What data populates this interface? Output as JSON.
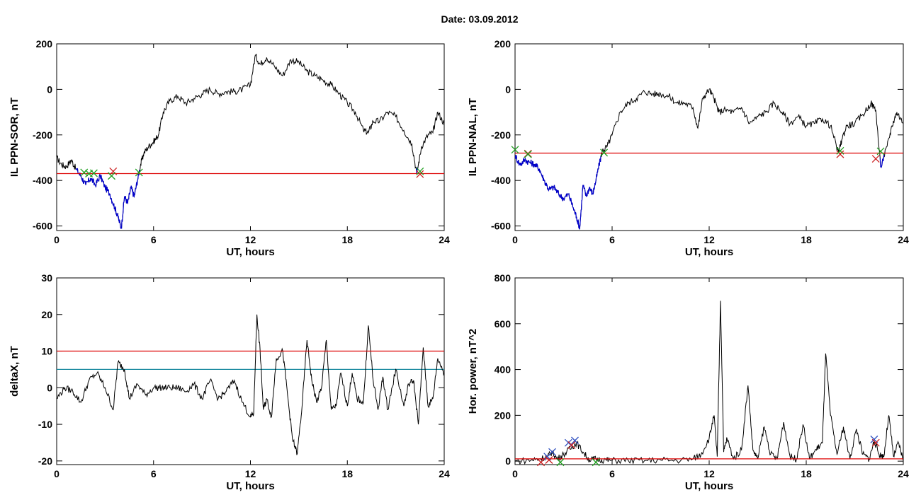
{
  "figure": {
    "title": "Date:  03.09.2012"
  },
  "colors": {
    "axis": "#000000",
    "trace": "#000000",
    "highlight": "#0000cc",
    "threshold_red": "#dd0000",
    "threshold_cyan": "#1a8aa0",
    "marker_green": "#20a020",
    "marker_red": "#cc2020",
    "marker_blue": "#3050c0"
  },
  "chart_data": [
    {
      "type": "line",
      "title": "",
      "xlabel": "UT, hours",
      "ylabel": "IL PPN-SOR, nT",
      "xlim": [
        0,
        24
      ],
      "ylim": [
        -620,
        200
      ],
      "xticks": [
        0,
        6,
        12,
        18,
        24
      ],
      "yticks": [
        -600,
        -400,
        -200,
        0,
        200
      ],
      "series": [
        {
          "values_x": [
            0,
            0.3,
            0.6,
            0.9,
            1.2,
            1.5,
            1.8,
            2.1,
            2.4,
            2.7,
            3.0,
            3.3,
            3.6,
            3.8,
            4.0,
            4.2,
            4.4,
            4.6,
            4.8,
            5.0,
            5.2,
            5.4,
            5.7,
            6.0,
            6.3,
            6.6,
            7.0,
            7.5,
            8,
            8.5,
            9,
            9.5,
            10,
            10.5,
            11,
            11.5,
            12,
            12.3,
            12.6,
            13,
            13.5,
            14,
            14.5,
            15,
            15.5,
            16,
            16.5,
            17,
            17.5,
            18,
            18.5,
            19,
            19.3,
            19.6,
            20,
            20.5,
            21,
            21.5,
            22,
            22.3,
            22.6,
            23,
            23.3,
            23.6,
            24
          ],
          "values_y": [
            -300,
            -330,
            -340,
            -310,
            -350,
            -380,
            -420,
            -390,
            -420,
            -380,
            -430,
            -460,
            -520,
            -560,
            -610,
            -470,
            -500,
            -430,
            -470,
            -400,
            -330,
            -280,
            -250,
            -230,
            -200,
            -100,
            -50,
            -30,
            -60,
            -40,
            -20,
            0,
            -20,
            -10,
            -10,
            0,
            20,
            150,
            110,
            140,
            100,
            60,
            130,
            120,
            80,
            60,
            40,
            20,
            -20,
            -60,
            -100,
            -180,
            -190,
            -140,
            -140,
            -100,
            -120,
            -180,
            -240,
            -370,
            -250,
            -200,
            -190,
            -100,
            -150
          ]
        }
      ],
      "threshold_red": -370,
      "highlight_threshold": -345,
      "markers": [
        {
          "x": 1.7,
          "y": -365,
          "color": "green"
        },
        {
          "x": 2.0,
          "y": -370,
          "color": "green"
        },
        {
          "x": 2.3,
          "y": -368,
          "color": "green"
        },
        {
          "x": 3.5,
          "y": -360,
          "color": "red"
        },
        {
          "x": 3.4,
          "y": -380,
          "color": "green"
        },
        {
          "x": 5.1,
          "y": -365,
          "color": "green"
        },
        {
          "x": 22.5,
          "y": -372,
          "color": "red"
        },
        {
          "x": 22.5,
          "y": -360,
          "color": "green"
        }
      ]
    },
    {
      "type": "line",
      "title": "",
      "xlabel": "UT, hours",
      "ylabel": "IL PPN-NAL, nT",
      "xlim": [
        0,
        24
      ],
      "ylim": [
        -620,
        200
      ],
      "xticks": [
        0,
        6,
        12,
        18,
        24
      ],
      "yticks": [
        -600,
        -400,
        -200,
        0,
        200
      ],
      "series": [
        {
          "values_x": [
            0,
            0.3,
            0.6,
            0.9,
            1.2,
            1.5,
            1.8,
            2.1,
            2.4,
            2.7,
            3.0,
            3.3,
            3.6,
            3.8,
            4.0,
            4.2,
            4.4,
            4.6,
            4.8,
            5.0,
            5.2,
            5.4,
            5.7,
            6.0,
            6.5,
            7,
            7.5,
            8,
            8.5,
            9,
            9.5,
            10,
            10.5,
            11,
            11.3,
            11.6,
            12,
            12.3,
            12.6,
            13,
            13.5,
            14,
            14.5,
            15,
            15.5,
            16,
            16.5,
            17,
            17.5,
            18,
            18.5,
            19,
            19.5,
            20,
            20.2,
            20.5,
            21,
            21.5,
            22,
            22.3,
            22.6,
            23,
            23.3,
            23.6,
            24
          ],
          "values_y": [
            -290,
            -330,
            -310,
            -320,
            -330,
            -350,
            -400,
            -440,
            -430,
            -460,
            -480,
            -460,
            -520,
            -560,
            -610,
            -420,
            -470,
            -430,
            -460,
            -400,
            -330,
            -270,
            -250,
            -200,
            -100,
            -60,
            -40,
            -10,
            -20,
            -20,
            -30,
            -60,
            -60,
            -80,
            -170,
            -40,
            0,
            -40,
            -100,
            -90,
            -100,
            -80,
            -150,
            -120,
            -100,
            -60,
            -100,
            -150,
            -120,
            -160,
            -150,
            -130,
            -160,
            -280,
            -220,
            -160,
            -150,
            -110,
            -60,
            -90,
            -340,
            -250,
            -160,
            -100,
            -150
          ]
        }
      ],
      "threshold_red": -280,
      "highlight_threshold": -280,
      "markers": [
        {
          "x": 0.0,
          "y": -265,
          "color": "green"
        },
        {
          "x": 0.8,
          "y": -282,
          "color": "red"
        },
        {
          "x": 0.8,
          "y": -285,
          "color": "green"
        },
        {
          "x": 5.5,
          "y": -278,
          "color": "green"
        },
        {
          "x": 20.1,
          "y": -285,
          "color": "red"
        },
        {
          "x": 20.1,
          "y": -270,
          "color": "green"
        },
        {
          "x": 22.3,
          "y": -305,
          "color": "red"
        },
        {
          "x": 22.6,
          "y": -272,
          "color": "green"
        }
      ]
    },
    {
      "type": "line",
      "title": "",
      "xlabel": "UT, hours",
      "ylabel": "deltaX, nT",
      "xlim": [
        0,
        24
      ],
      "ylim": [
        -21,
        30
      ],
      "xticks": [
        0,
        6,
        12,
        18,
        24
      ],
      "yticks": [
        -20,
        -10,
        0,
        10,
        20,
        30
      ],
      "series": [
        {
          "values_x": [
            0,
            0.5,
            1,
            1.5,
            2,
            2.5,
            3,
            3.5,
            3.8,
            4.2,
            4.5,
            5,
            5.5,
            6,
            6.5,
            7,
            7.5,
            8,
            8.5,
            9,
            9.5,
            10,
            10.5,
            11,
            11.5,
            12,
            12.2,
            12.4,
            12.6,
            12.8,
            13,
            13.3,
            13.6,
            14,
            14.3,
            14.6,
            14.9,
            15.2,
            15.5,
            15.8,
            16.1,
            16.4,
            16.7,
            17,
            17.3,
            17.6,
            18,
            18.3,
            18.6,
            19,
            19.3,
            19.6,
            19.9,
            20.2,
            20.5,
            21,
            21.5,
            21.8,
            22.1,
            22.4,
            22.7,
            23,
            23.3,
            23.6,
            24
          ],
          "values_y": [
            -3,
            0,
            -1,
            -4,
            2,
            4,
            0,
            -6,
            7,
            5,
            -3,
            1,
            -2,
            0,
            0,
            0,
            0,
            -1,
            1,
            -3,
            2,
            -3,
            -1,
            2,
            -4,
            -8,
            -7,
            20,
            10,
            -6,
            -3,
            -8,
            8,
            10,
            -2,
            -14,
            -18,
            -5,
            13,
            2,
            -4,
            0,
            13,
            -6,
            -5,
            4,
            -5,
            4,
            -3,
            -4,
            17,
            2,
            -6,
            3,
            -6,
            5,
            -5,
            1,
            2,
            -10,
            11,
            -5,
            -3,
            8,
            4
          ]
        }
      ],
      "threshold_red": 10,
      "threshold_cyan": 5
    },
    {
      "type": "line",
      "title": "",
      "xlabel": "UT, hours",
      "ylabel": "Hor. power, nT^2",
      "xlim": [
        0,
        24
      ],
      "ylim": [
        -15,
        800
      ],
      "xticks": [
        0,
        6,
        12,
        18,
        24
      ],
      "yticks": [
        0,
        200,
        400,
        600,
        800
      ],
      "series": [
        {
          "values_x": [
            0,
            1,
            1.5,
            2,
            2.3,
            2.6,
            3,
            3.5,
            3.8,
            4.2,
            4.6,
            5,
            5.5,
            6,
            7,
            8,
            9,
            10,
            11,
            11.5,
            12,
            12.3,
            12.5,
            12.7,
            12.9,
            13.1,
            13.5,
            14,
            14.4,
            14.7,
            15,
            15.4,
            15.8,
            16.2,
            16.6,
            17,
            17.4,
            17.8,
            18.2,
            18.6,
            19.0,
            19.2,
            19.5,
            19.9,
            20.3,
            20.7,
            21.1,
            21.5,
            21.9,
            22.2,
            22.5,
            22.8,
            23.1,
            23.4,
            23.7,
            24
          ],
          "values_y": [
            0,
            5,
            10,
            20,
            40,
            10,
            30,
            60,
            80,
            40,
            5,
            10,
            5,
            3,
            3,
            2,
            5,
            3,
            10,
            30,
            100,
            200,
            20,
            700,
            40,
            100,
            10,
            50,
            330,
            50,
            10,
            150,
            30,
            10,
            170,
            20,
            10,
            160,
            10,
            50,
            80,
            470,
            200,
            30,
            150,
            10,
            140,
            30,
            10,
            90,
            30,
            20,
            200,
            20,
            80,
            5
          ]
        }
      ],
      "threshold_red": 10,
      "markers": [
        {
          "x": 2.0,
          "y": 20,
          "color": "blue"
        },
        {
          "x": 2.3,
          "y": 40,
          "color": "blue"
        },
        {
          "x": 2.1,
          "y": 5,
          "color": "red"
        },
        {
          "x": 3.3,
          "y": 80,
          "color": "blue"
        },
        {
          "x": 3.7,
          "y": 90,
          "color": "blue"
        },
        {
          "x": 3.5,
          "y": 70,
          "color": "red"
        },
        {
          "x": 1.6,
          "y": -5,
          "color": "red"
        },
        {
          "x": 2.8,
          "y": -5,
          "color": "green"
        },
        {
          "x": 5.0,
          "y": -5,
          "color": "green"
        },
        {
          "x": 22.2,
          "y": 95,
          "color": "blue"
        },
        {
          "x": 22.3,
          "y": 80,
          "color": "red"
        }
      ]
    }
  ]
}
